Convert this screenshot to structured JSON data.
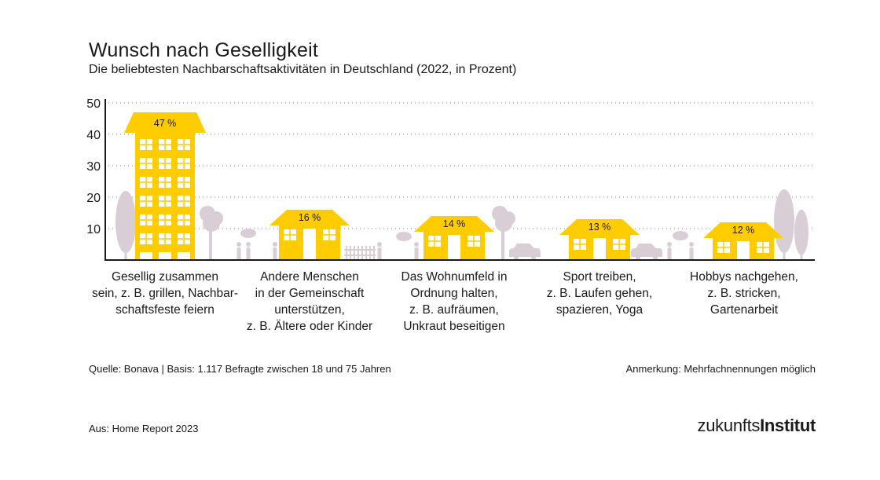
{
  "title": "Wunsch nach Geselligkeit",
  "subtitle": "Die beliebtesten Nachbarschaftsaktivitäten in Deutschland (2022, in Prozent)",
  "chart_data": {
    "type": "bar",
    "categories": [
      "Gesellig zusammen\nsein, z. B. grillen, Nachbar-\nschaftsfeste feiern",
      "Andere Menschen\nin der Gemeinschaft\nunterstützen,\nz. B. Ältere oder Kinder",
      "Das Wohnumfeld in\nOrdnung halten,\nz. B. aufräumen,\nUnkraut beseitigen",
      "Sport treiben,\nz. B. Laufen gehen,\nspazieren, Yoga",
      "Hobbys nachgehen,\nz. B. stricken,\nGartenarbeit"
    ],
    "values": [
      47,
      16,
      14,
      13,
      12
    ],
    "data_labels": [
      "47 %",
      "16 %",
      "14 %",
      "13 %",
      "12 %"
    ],
    "y_ticks": [
      "10",
      "20",
      "30",
      "40",
      "50"
    ],
    "ylim": [
      0,
      50
    ],
    "grid": true,
    "bar_color": "#ffcc00",
    "decoration_color": "#d9ced6"
  },
  "footer": {
    "source": "Quelle: Bonava | Basis: 1.117 Befragte zwischen 18 und 75 Jahren",
    "note": "Anmerkung: Mehrfachnennungen möglich",
    "from": "Aus: Home Report 2023",
    "logo_thin": "zukunfts",
    "logo_bold": "Institut"
  }
}
